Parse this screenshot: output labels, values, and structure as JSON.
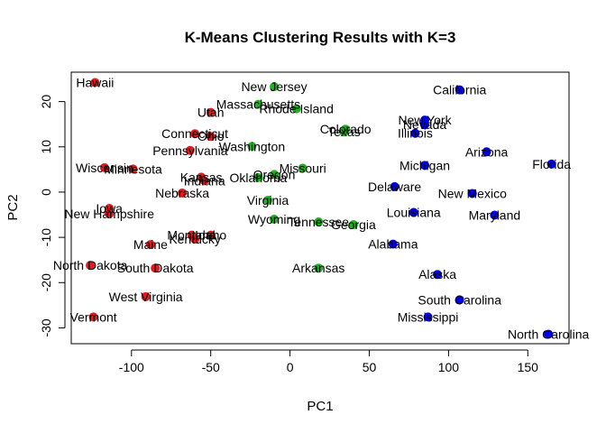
{
  "chart_data": {
    "type": "scatter",
    "title": "K-Means Clustering Results with K=3",
    "xlabel": "PC1",
    "ylabel": "PC2",
    "xlim": [
      -138,
      176
    ],
    "ylim": [
      -33.5,
      26.5
    ],
    "xticks": [
      -100,
      -50,
      0,
      50,
      100,
      150
    ],
    "yticks": [
      -30,
      -20,
      -10,
      0,
      10,
      20
    ],
    "grid": false,
    "colors": {
      "1": "#e41a1c",
      "2": "#1fb31f",
      "3": "#0000ee"
    },
    "points": [
      {
        "label": "Hawaii",
        "x": -123,
        "y": 24.2,
        "cluster": 1
      },
      {
        "label": "Utah",
        "x": -50,
        "y": 17.6,
        "cluster": 1
      },
      {
        "label": "Connecticut",
        "x": -60,
        "y": 12.9,
        "cluster": 1
      },
      {
        "label": "Ohio",
        "x": -50,
        "y": 12.3,
        "cluster": 1
      },
      {
        "label": "Pennsylvania",
        "x": -63,
        "y": 9.2,
        "cluster": 1
      },
      {
        "label": "Wisconsin",
        "x": -117,
        "y": 5.4,
        "cluster": 1
      },
      {
        "label": "Minnesota",
        "x": -99,
        "y": 5.1,
        "cluster": 1
      },
      {
        "label": "Kansas",
        "x": -56,
        "y": 3.3,
        "cluster": 1
      },
      {
        "label": "Indiana",
        "x": -54,
        "y": 2.5,
        "cluster": 1
      },
      {
        "label": "Nebraska",
        "x": -68,
        "y": -0.2,
        "cluster": 1
      },
      {
        "label": "Iowa",
        "x": -114,
        "y": -3.6,
        "cluster": 1
      },
      {
        "label": "New Hampshire",
        "x": -114,
        "y": -4.8,
        "cluster": 1
      },
      {
        "label": "Montana",
        "x": -62,
        "y": -9.5,
        "cluster": 1
      },
      {
        "label": "Idaho",
        "x": -50,
        "y": -9.5,
        "cluster": 1
      },
      {
        "label": "Kentucky",
        "x": -60,
        "y": -10.4,
        "cluster": 1
      },
      {
        "label": "Maine",
        "x": -88,
        "y": -11.6,
        "cluster": 1
      },
      {
        "label": "North Dakota",
        "x": -126,
        "y": -16.2,
        "cluster": 1
      },
      {
        "label": "South Dakota",
        "x": -85,
        "y": -16.8,
        "cluster": 1
      },
      {
        "label": "West Virginia",
        "x": -91,
        "y": -23.1,
        "cluster": 1
      },
      {
        "label": "Vermont",
        "x": -124,
        "y": -27.6,
        "cluster": 1
      },
      {
        "label": "New Jersey",
        "x": -10,
        "y": 23.3,
        "cluster": 2
      },
      {
        "label": "Massachusetts",
        "x": -20,
        "y": 19.4,
        "cluster": 2
      },
      {
        "label": "Rhode Island",
        "x": 4,
        "y": 18.4,
        "cluster": 2
      },
      {
        "label": "Colorado",
        "x": 35,
        "y": 13.9,
        "cluster": 2
      },
      {
        "label": "Texas",
        "x": 34,
        "y": 13.3,
        "cluster": 2
      },
      {
        "label": "Washington",
        "x": -24,
        "y": 10.1,
        "cluster": 2
      },
      {
        "label": "Missouri",
        "x": 8,
        "y": 5.3,
        "cluster": 2
      },
      {
        "label": "Oregon",
        "x": -10,
        "y": 3.9,
        "cluster": 2
      },
      {
        "label": "Oklahoma",
        "x": -20,
        "y": 3.2,
        "cluster": 2
      },
      {
        "label": "Virginia",
        "x": -14,
        "y": -1.8,
        "cluster": 2
      },
      {
        "label": "Wyoming",
        "x": -10,
        "y": -6.0,
        "cluster": 2
      },
      {
        "label": "Tennessee",
        "x": 18,
        "y": -6.6,
        "cluster": 2
      },
      {
        "label": "Georgia",
        "x": 40,
        "y": -7.2,
        "cluster": 2
      },
      {
        "label": "Arkansas",
        "x": 18,
        "y": -16.8,
        "cluster": 2
      },
      {
        "label": "California",
        "x": 107,
        "y": 22.6,
        "cluster": 3
      },
      {
        "label": "New York",
        "x": 85,
        "y": 15.9,
        "cluster": 3
      },
      {
        "label": "Nevada",
        "x": 85,
        "y": 14.9,
        "cluster": 3
      },
      {
        "label": "Illinois",
        "x": 79,
        "y": 13.0,
        "cluster": 3
      },
      {
        "label": "Arizona",
        "x": 124,
        "y": 8.9,
        "cluster": 3
      },
      {
        "label": "Florida",
        "x": 165,
        "y": 6.2,
        "cluster": 3
      },
      {
        "label": "Michigan",
        "x": 85,
        "y": 5.9,
        "cluster": 3
      },
      {
        "label": "Delaware",
        "x": 66,
        "y": 1.2,
        "cluster": 3
      },
      {
        "label": "New Mexico",
        "x": 115,
        "y": -0.3,
        "cluster": 3
      },
      {
        "label": "Maryland",
        "x": 129,
        "y": -5.1,
        "cluster": 3
      },
      {
        "label": "Louisiana",
        "x": 78,
        "y": -4.5,
        "cluster": 3
      },
      {
        "label": "Alabama",
        "x": 65,
        "y": -11.5,
        "cluster": 3
      },
      {
        "label": "Alaska",
        "x": 93,
        "y": -18.2,
        "cluster": 3
      },
      {
        "label": "South Carolina",
        "x": 107,
        "y": -23.8,
        "cluster": 3
      },
      {
        "label": "Mississippi",
        "x": 87,
        "y": -27.6,
        "cluster": 3
      },
      {
        "label": "North Carolina",
        "x": 163,
        "y": -31.4,
        "cluster": 3
      }
    ]
  }
}
